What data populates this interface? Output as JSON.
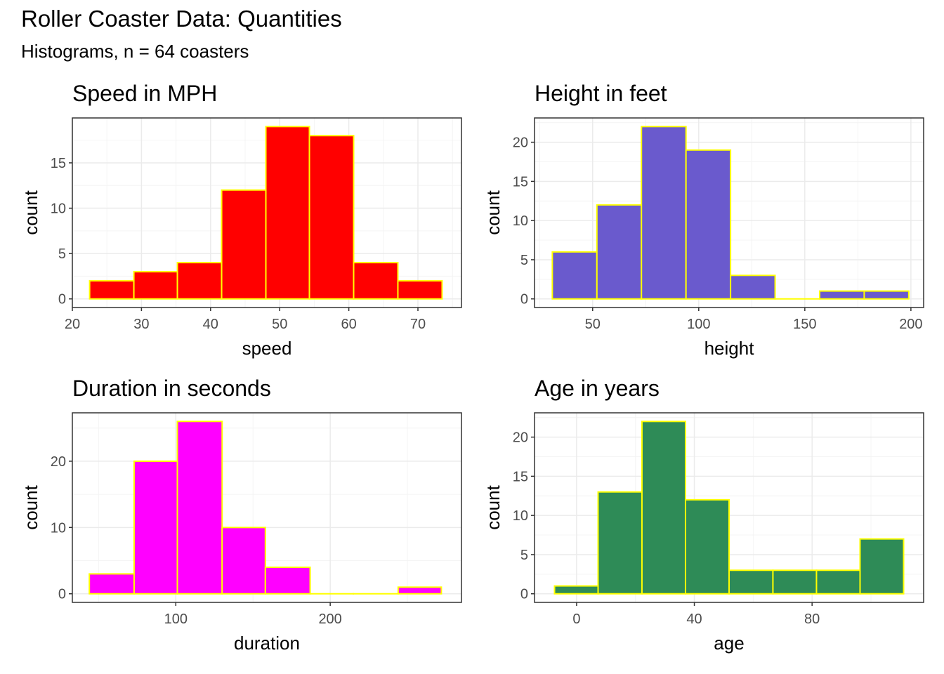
{
  "title": "Roller Coaster Data: Quantities",
  "subtitle": "Histograms, n = 64 coasters",
  "colors": {
    "bar_outline": "#FFFF00",
    "panel_border": "#333333",
    "grid": "#EBEBEB"
  },
  "chart_data": [
    {
      "type": "bar",
      "title": "Speed in MPH",
      "xlabel": "speed",
      "ylabel": "count",
      "fill": "#FF0000",
      "bins": [
        [
          22.5,
          28.9
        ],
        [
          28.9,
          35.2
        ],
        [
          35.2,
          41.6
        ],
        [
          41.6,
          48.0
        ],
        [
          48.0,
          54.3
        ],
        [
          54.3,
          60.7
        ],
        [
          60.7,
          67.1
        ],
        [
          67.1,
          73.5
        ]
      ],
      "values": [
        2,
        3,
        4,
        12,
        19,
        18,
        4,
        2
      ],
      "xlim": [
        20,
        76.3
      ],
      "ylim": [
        -0.95,
        19.95
      ],
      "xticks": [
        20,
        30,
        40,
        50,
        60,
        70
      ],
      "yticks": [
        0,
        5,
        10,
        15
      ]
    },
    {
      "type": "bar",
      "title": "Height in feet",
      "xlabel": "height",
      "ylabel": "count",
      "fill": "#6A5ACD",
      "bins": [
        [
          31,
          52
        ],
        [
          52,
          73
        ],
        [
          73,
          94
        ],
        [
          94,
          115
        ],
        [
          115,
          136
        ],
        [
          136,
          157
        ],
        [
          157,
          178
        ],
        [
          178,
          199
        ]
      ],
      "values": [
        6,
        12,
        22,
        19,
        3,
        0,
        1,
        1
      ],
      "xlim": [
        22.6,
        206
      ],
      "ylim": [
        -1.1,
        23.1
      ],
      "xticks": [
        50,
        100,
        150,
        200
      ],
      "yticks": [
        0,
        5,
        10,
        15,
        20
      ]
    },
    {
      "type": "bar",
      "title": "Duration in seconds",
      "xlabel": "duration",
      "ylabel": "count",
      "fill": "#FF00FF",
      "bins": [
        [
          44,
          73
        ],
        [
          73,
          101
        ],
        [
          101,
          130
        ],
        [
          130,
          158
        ],
        [
          158,
          187
        ],
        [
          187,
          215
        ],
        [
          215,
          244
        ],
        [
          244,
          272
        ]
      ],
      "values": [
        3,
        20,
        26,
        10,
        4,
        0,
        0,
        1
      ],
      "xlim": [
        33,
        285
      ],
      "ylim": [
        -1.3,
        27.3
      ],
      "xticks": [
        100,
        200
      ],
      "yticks": [
        0,
        10,
        20
      ]
    },
    {
      "type": "bar",
      "title": "Age in years",
      "xlabel": "age",
      "ylabel": "count",
      "fill": "#2E8B57",
      "bins": [
        [
          -7.5,
          7.3
        ],
        [
          7.3,
          22.2
        ],
        [
          22.2,
          37.0
        ],
        [
          37.0,
          51.8
        ],
        [
          51.8,
          66.7
        ],
        [
          66.7,
          81.5
        ],
        [
          81.5,
          96.3
        ],
        [
          96.3,
          111.1
        ]
      ],
      "values": [
        1,
        13,
        22,
        12,
        3,
        3,
        3,
        7
      ],
      "xlim": [
        -14.3,
        117.9
      ],
      "ylim": [
        -1.1,
        23.1
      ],
      "xticks": [
        0,
        40,
        80
      ],
      "yticks": [
        0,
        5,
        10,
        15,
        20
      ]
    }
  ]
}
